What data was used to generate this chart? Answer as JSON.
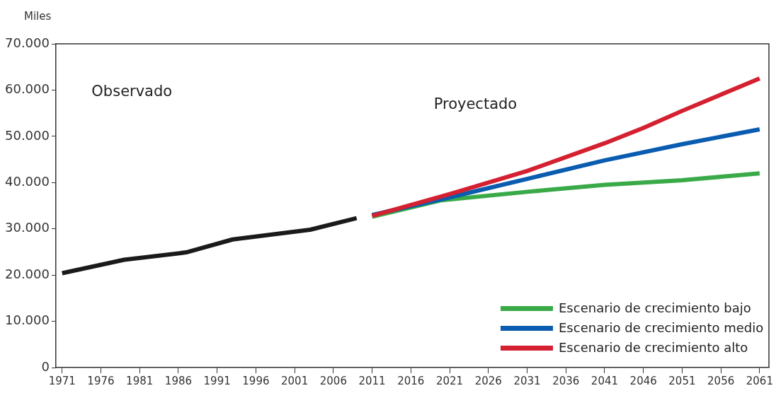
{
  "chart_data": {
    "type": "line",
    "ylabel": "Miles",
    "annotations": [
      "Observado",
      "Proyectado"
    ],
    "xlim": [
      1970.2,
      2062.2
    ],
    "xticks": [
      1971,
      1976,
      1981,
      1986,
      1991,
      1996,
      2001,
      2006,
      2011,
      2016,
      2021,
      2026,
      2031,
      2036,
      2041,
      2046,
      2051,
      2056,
      2061
    ],
    "ylim": [
      0,
      70000
    ],
    "yticks": [
      {
        "value": 0,
        "label": "0"
      },
      {
        "value": 10000,
        "label": "10.000"
      },
      {
        "value": 20000,
        "label": "20.000"
      },
      {
        "value": 30000,
        "label": "30.000"
      },
      {
        "value": 40000,
        "label": "40.000"
      },
      {
        "value": 50000,
        "label": "50.000"
      },
      {
        "value": 60000,
        "label": "60.000"
      },
      {
        "value": 70000,
        "label": "70.000"
      }
    ],
    "series": [
      {
        "color": "#1a1a1a",
        "x": [
          1971,
          1979,
          1987,
          1993,
          2003,
          2009
        ],
        "values": [
          20400,
          23300,
          24900,
          27700,
          29800,
          32300
        ]
      },
      {
        "name": "Escenario de crecimiento bajo",
        "color": "#3aaa48",
        "x": [
          2011,
          2020,
          2031,
          2041,
          2051,
          2061
        ],
        "values": [
          32600,
          36200,
          38000,
          39500,
          40500,
          42000
        ]
      },
      {
        "name": "Escenario de crecimiento medio",
        "color": "#0a5cb0",
        "x": [
          2011,
          2021,
          2031,
          2041,
          2051,
          2061
        ],
        "values": [
          33000,
          36800,
          40800,
          44800,
          48300,
          51500
        ]
      },
      {
        "name": "Escenario de crecimiento alto",
        "color": "#d42030",
        "x": [
          2011,
          2021,
          2031,
          2041,
          2046,
          2051,
          2061
        ],
        "values": [
          32800,
          37500,
          42500,
          48500,
          51800,
          55500,
          62500
        ]
      }
    ],
    "grid": false,
    "legend": "bottom right",
    "marker": "none",
    "line_style": "solid"
  }
}
